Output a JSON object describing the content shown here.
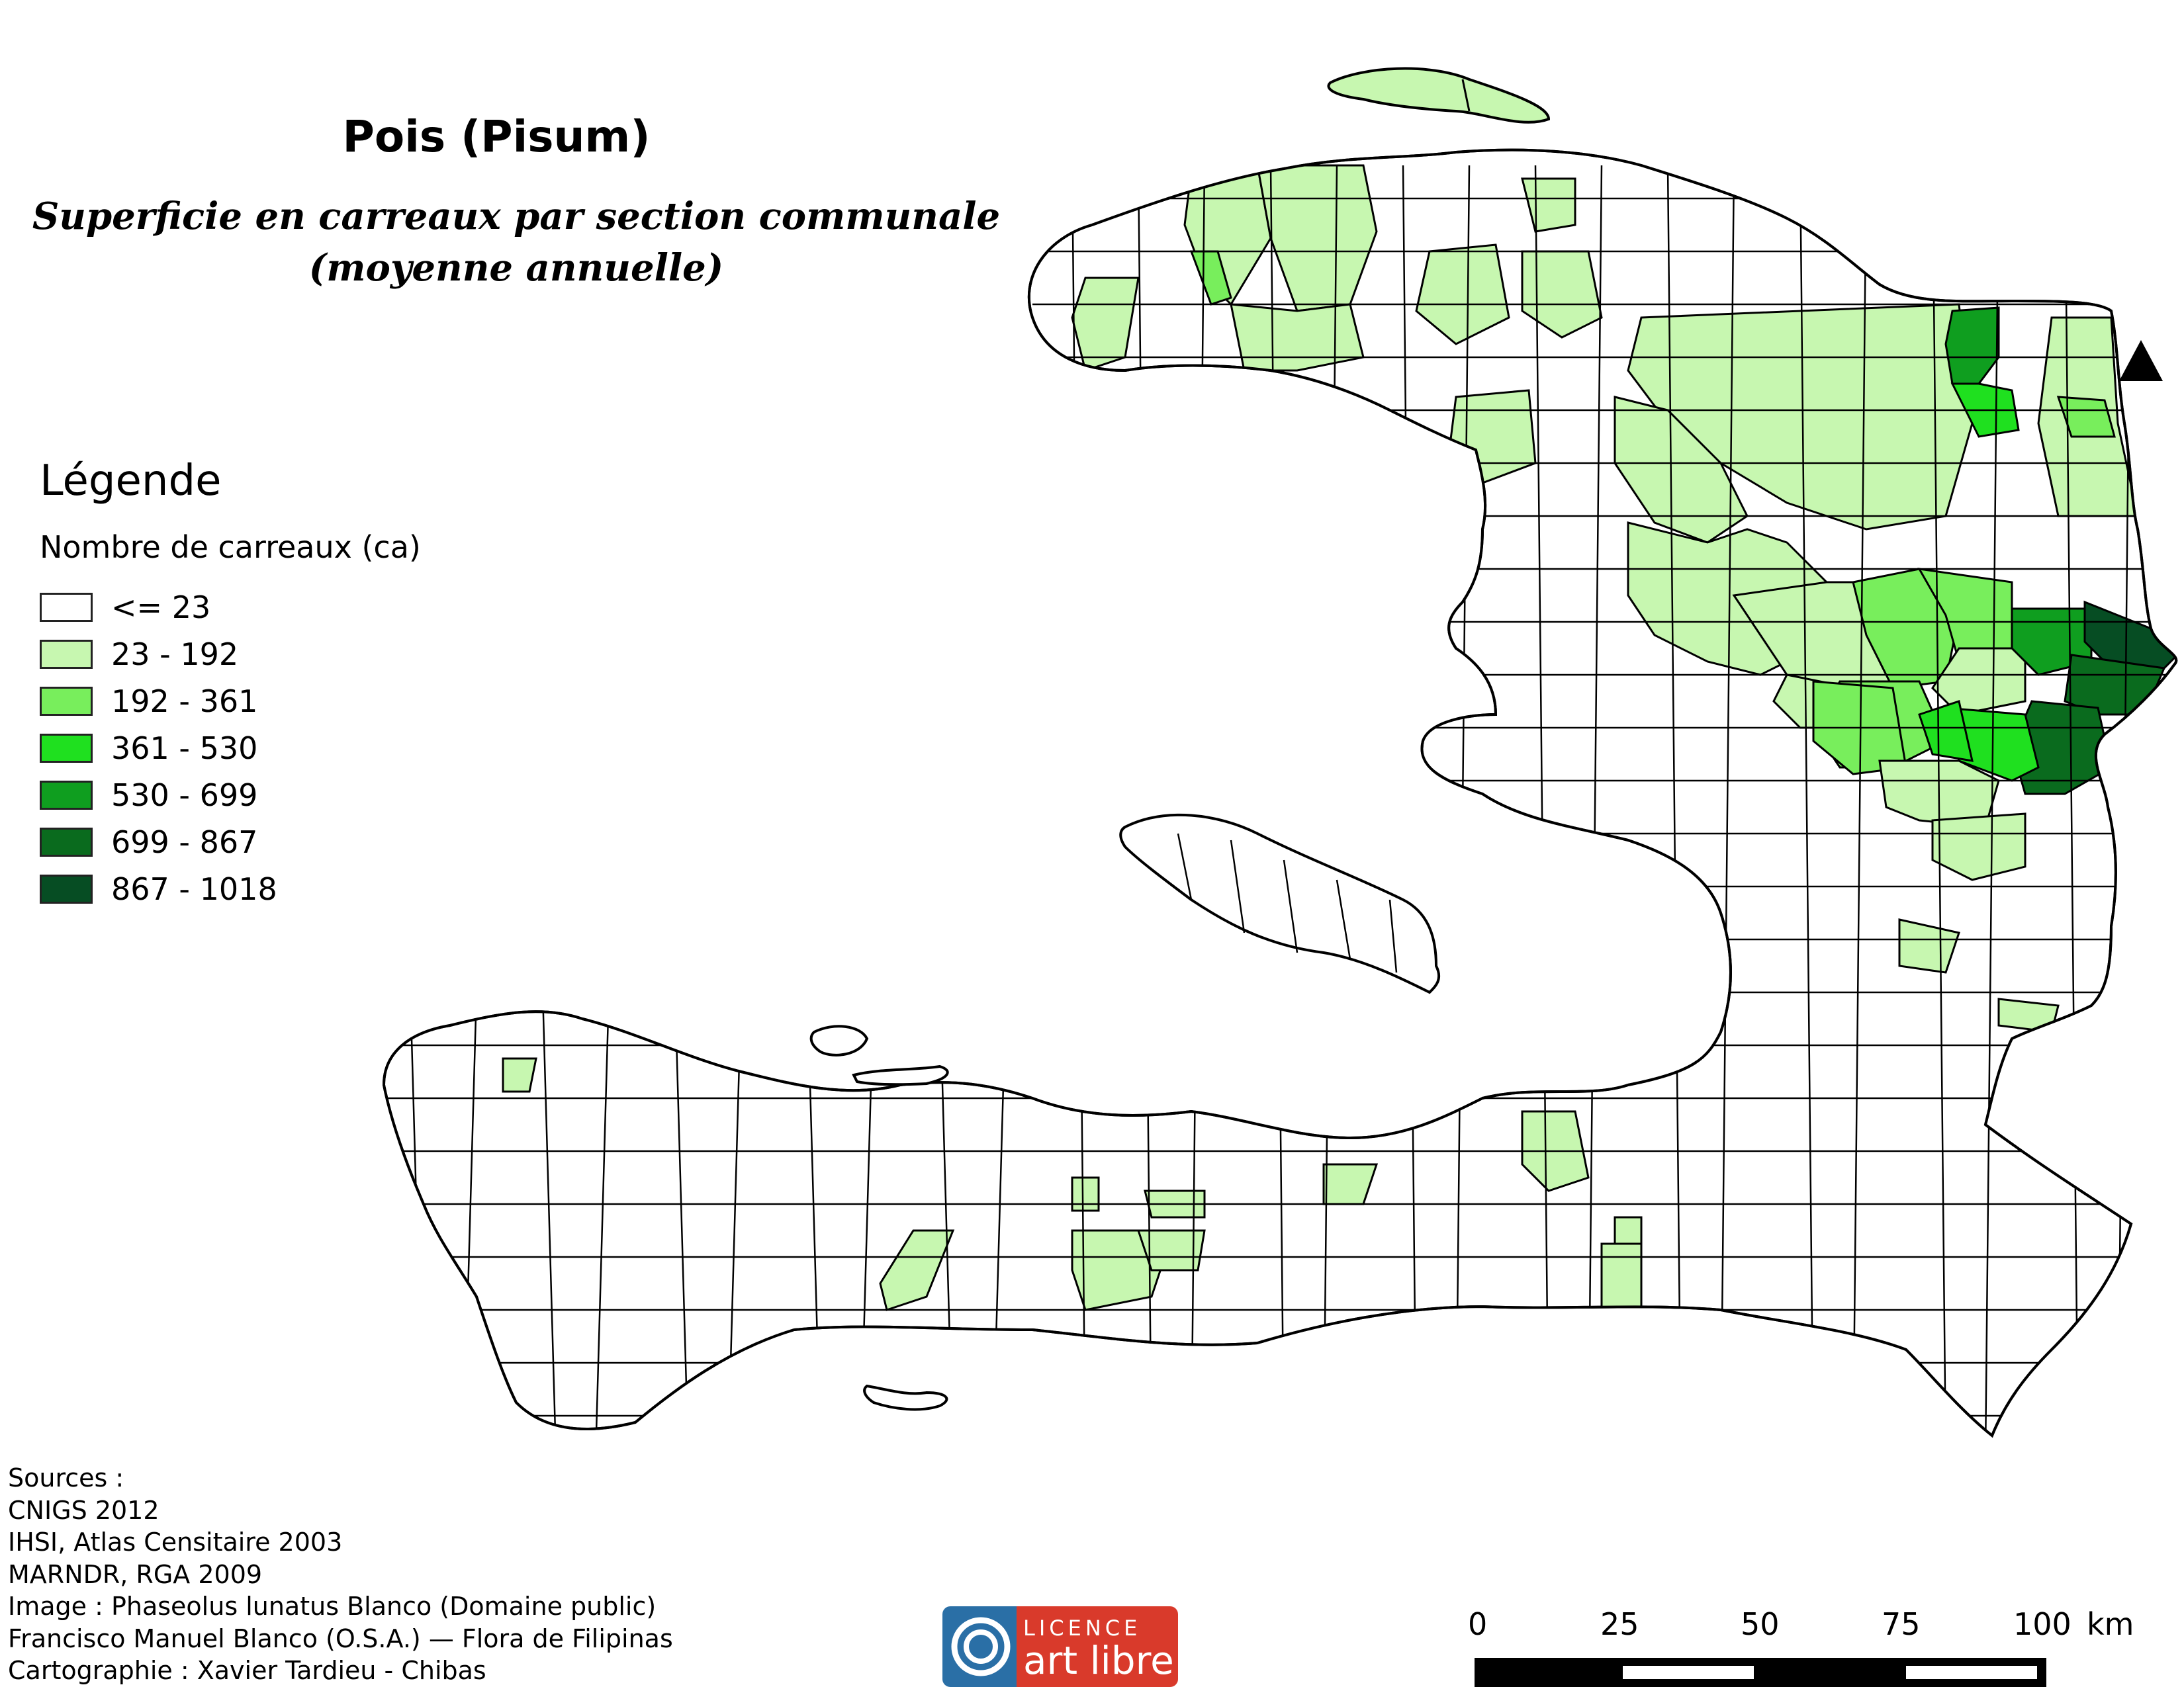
{
  "title": "Pois (Pisum)",
  "subtitle_line1": "Superficie en carreaux par section communale",
  "subtitle_line2": "(moyenne annuelle)",
  "legend": {
    "title": "Légende",
    "subtitle": "Nombre de carreaux (ca)",
    "classes": [
      {
        "label": "<= 23",
        "color": "#ffffff"
      },
      {
        "label": "23 - 192",
        "color": "#c7f7b0"
      },
      {
        "label": "192 - 361",
        "color": "#78ee5c"
      },
      {
        "label": "361 - 530",
        "color": "#1fe01f"
      },
      {
        "label": "530 - 699",
        "color": "#0f9e1f"
      },
      {
        "label": "699 - 867",
        "color": "#0a6b1e"
      },
      {
        "label": "867 - 1018",
        "color": "#064d23"
      }
    ]
  },
  "sources": [
    "Sources :",
    "CNIGS 2012",
    "IHSI, Atlas Censitaire 2003",
    "MARNDR, RGA 2009",
    "Image :  Phaseolus lunatus Blanco (Domaine public)",
    "Francisco Manuel Blanco (O.S.A.) — Flora de Filipinas",
    "Cartographie : Xavier Tardieu - Chibas"
  ],
  "licence": {
    "line1": "LICENCE",
    "line2": "art libre"
  },
  "scale": {
    "ticks": [
      "0",
      "25",
      "50",
      "75",
      "100"
    ],
    "unit": "km"
  }
}
